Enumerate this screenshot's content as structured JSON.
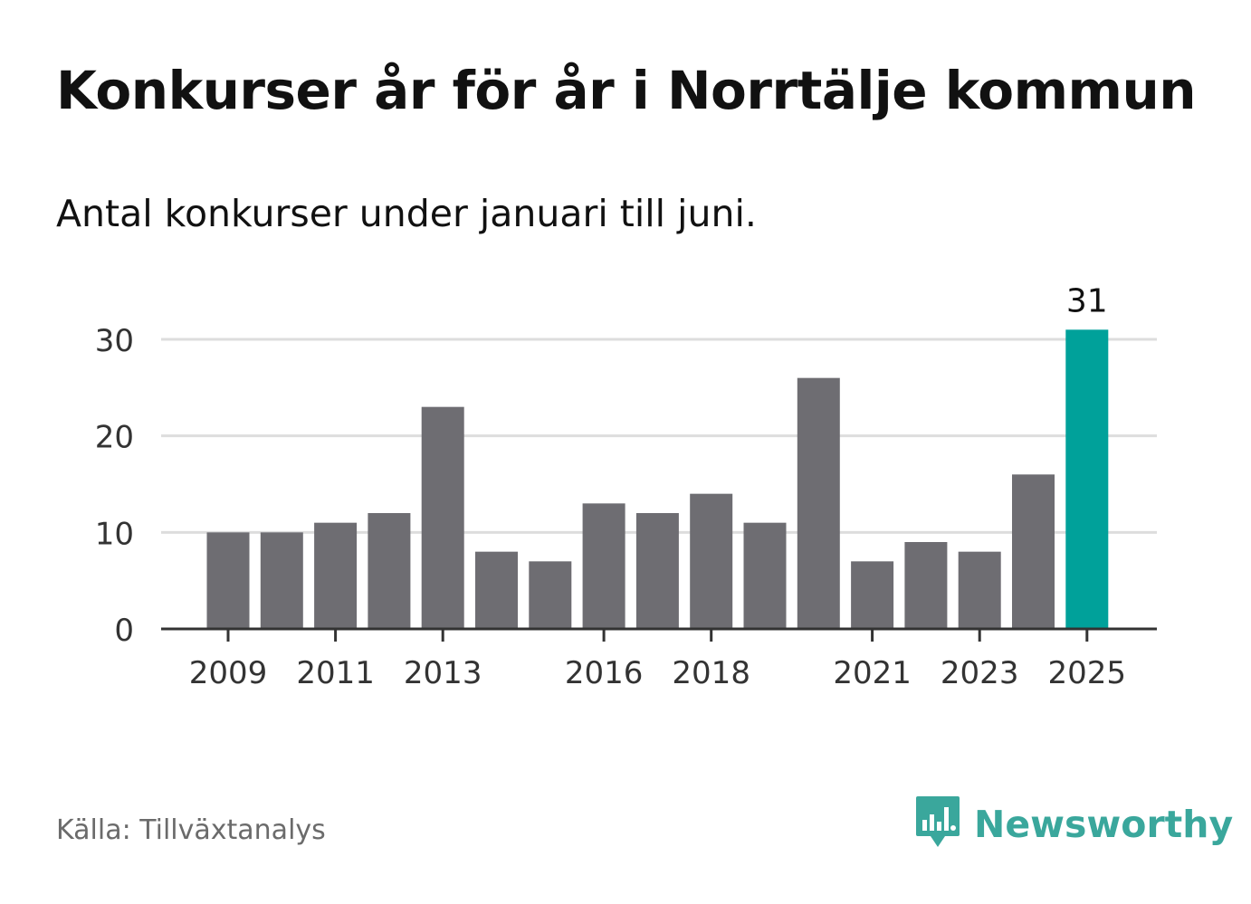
{
  "header": {
    "title": "Konkurser år för år i Norrtälje kommun",
    "subtitle": "Antal konkurser under januari till juni."
  },
  "footer": {
    "source": "Källa: Tillväxtanalys",
    "brand": "Newsworthy",
    "brand_icon": "newsworthy-logo-icon"
  },
  "colors": {
    "bar": "#6e6d72",
    "highlight": "#00a19a",
    "grid": "#dddddd",
    "axis": "#333333",
    "brand": "#3aa79c"
  },
  "chart_data": {
    "type": "bar",
    "title": "Konkurser år för år i Norrtälje kommun",
    "subtitle": "Antal konkurser under januari till juni.",
    "xlabel": "",
    "ylabel": "",
    "categories": [
      "2009",
      "2010",
      "2011",
      "2012",
      "2013",
      "2014",
      "2015",
      "2016",
      "2017",
      "2018",
      "2019",
      "2020",
      "2021",
      "2022",
      "2023",
      "2024",
      "2025"
    ],
    "values": [
      10,
      10,
      11,
      12,
      23,
      8,
      7,
      13,
      12,
      14,
      11,
      26,
      7,
      9,
      8,
      16,
      31
    ],
    "x_tick_labels": [
      "2009",
      "2011",
      "2013",
      "2016",
      "2018",
      "2021",
      "2023",
      "2025"
    ],
    "y_ticks": [
      0,
      10,
      20,
      30
    ],
    "ylim": [
      0,
      31
    ],
    "grid": true,
    "highlight": {
      "category": "2025",
      "label": "31"
    }
  }
}
